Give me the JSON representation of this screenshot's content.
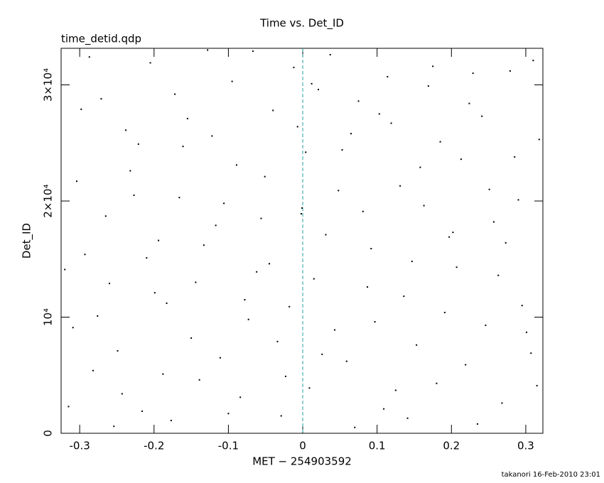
{
  "chart_data": {
    "type": "scatter",
    "title": "Time vs. Det_ID",
    "subtitle": "time_detid.qdp",
    "x_label": "MET − 254903592",
    "y_label": "Det_ID",
    "footer": "takanori 16-Feb-2010 23:01",
    "color": "#000000",
    "xlim": [
      -0.325,
      0.323
    ],
    "ylim": [
      0,
      33150
    ],
    "xticks": [
      -0.3,
      -0.2,
      -0.1,
      0,
      0.1,
      0.2,
      0.3
    ],
    "yticks": [
      0,
      {
        "value": 10000,
        "label": "10⁴"
      },
      {
        "value": 20000,
        "label": "2×10⁴"
      },
      {
        "value": 30000,
        "label": "3×10⁴"
      }
    ],
    "reference_line": {
      "x": 0,
      "color": "#2aa0a0"
    },
    "x": [
      -0.315,
      -0.293,
      -0.271,
      -0.249,
      -0.227,
      -0.205,
      -0.183,
      -0.161,
      -0.139,
      -0.117,
      -0.095,
      -0.073,
      -0.051,
      -0.029,
      -0.007,
      0.015,
      0.037,
      0.059,
      0.081,
      0.103,
      0.125,
      0.147,
      0.169,
      0.191,
      0.213,
      0.235,
      0.257,
      0.279,
      0.301,
      0.318,
      -0.304,
      -0.282,
      -0.26,
      -0.238,
      -0.216,
      -0.194,
      -0.172,
      -0.15,
      -0.128,
      -0.106,
      -0.084,
      -0.062,
      -0.04,
      -0.018,
      0.004,
      0.026,
      0.048,
      0.07,
      0.092,
      0.114,
      0.136,
      0.158,
      0.18,
      0.202,
      0.224,
      0.246,
      0.268,
      0.29,
      0.31,
      -0.32,
      -0.309,
      -0.287,
      -0.265,
      -0.243,
      -0.221,
      -0.199,
      -0.177,
      -0.155,
      -0.133,
      -0.111,
      -0.089,
      -0.067,
      -0.045,
      -0.023,
      -0.001,
      0.021,
      0.043,
      0.065,
      0.087,
      0.109,
      0.131,
      0.153,
      0.175,
      0.197,
      0.219,
      0.241,
      0.263,
      0.285,
      0.307,
      0.012,
      -0.298,
      -0.276,
      -0.254,
      -0.232,
      -0.21,
      -0.188,
      -0.166,
      -0.144,
      -0.122,
      -0.1,
      -0.078,
      -0.056,
      -0.034,
      -0.012,
      0.009,
      0.031,
      0.053,
      0.075,
      0.097,
      0.119,
      0.141,
      0.163,
      0.185,
      0.207,
      0.229,
      0.251,
      0.273,
      0.295,
      0.315,
      -0.002
    ],
    "y": [
      2300,
      15400,
      28800,
      7100,
      20500,
      31900,
      11200,
      24700,
      4600,
      17900,
      30300,
      9800,
      22100,
      1500,
      26400,
      13300,
      32600,
      6200,
      19100,
      27500,
      3700,
      14800,
      29900,
      10400,
      23600,
      800,
      18200,
      31200,
      8700,
      25300,
      21700,
      5400,
      12900,
      26100,
      1900,
      16600,
      29200,
      8200,
      33000,
      19800,
      3100,
      13900,
      27800,
      10900,
      24200,
      6800,
      20900,
      500,
      15900,
      30700,
      11800,
      22900,
      4300,
      17300,
      28400,
      9300,
      2600,
      20100,
      32100,
      14100,
      9100,
      32400,
      18700,
      3400,
      24900,
      12100,
      1100,
      27100,
      16200,
      6500,
      23100,
      32900,
      14600,
      4900,
      19400,
      29600,
      8900,
      25800,
      12600,
      2100,
      21300,
      7600,
      31600,
      16900,
      5900,
      27300,
      13600,
      23800,
      6900,
      30100,
      27900,
      10100,
      600,
      22600,
      15100,
      5100,
      20300,
      13000,
      25600,
      1700,
      11500,
      18500,
      7900,
      31500,
      3900,
      17100,
      24400,
      28600,
      9600,
      26700,
      1300,
      19600,
      25100,
      14300,
      31000,
      21000,
      16400,
      11000,
      4100,
      18900
    ]
  }
}
